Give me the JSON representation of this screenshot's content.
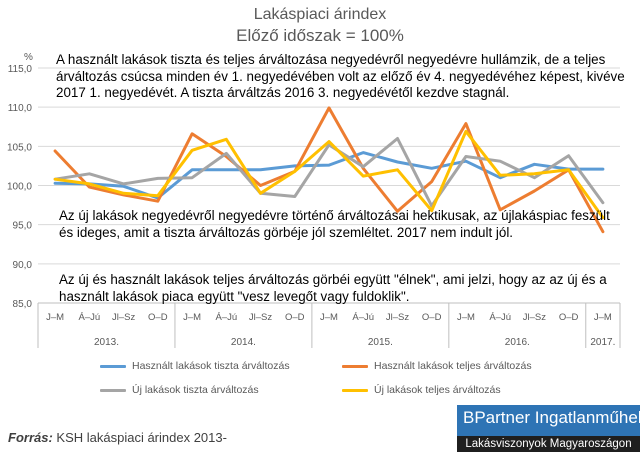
{
  "title": "Lakáspiaci árindex",
  "subtitle": "Előző időszak = 100%",
  "annotations": [
    "A használt lakások tiszta és teljes  árváltozása negyedévről negyedévre hullámzik, de a teljes árváltozás csúcsa minden év 1. negyedévében  volt az előző év 4. negyedévéhez képest, kivéve 2017 1. negyedévét. A tiszta árváltzás   2016 3. negyedévétől kezdve stagnál.",
    "Az új lakások negyedévről negyedévre történő árváltozásai hektikusak, az újlakáspiac feszült és ideges, amit a tiszta árváltozás görbéje jól szemléltet. 2017 nem indult jól.",
    "Az új és használt lakások teljes árváltozás görbéi együtt \"élnek\", ami jelzi, hogy az az új és a használt lakások piaca együtt \"vesz levegőt vagy fuldoklik\"."
  ],
  "source_label": "Forrás:",
  "source_text": " KSH lakáspiaci árindex 2013-",
  "brand_line1": "BPartner Ingatlanműhely",
  "brand_line2": "Lakásviszonyok Magyaroszágon",
  "colors": {
    "hasznalt_tiszta": "#5b9bd5",
    "hasznalt_teljes": "#ed7d31",
    "uj_tiszta": "#a5a5a5",
    "uj_teljes": "#ffc000",
    "grid": "#d9d9d9",
    "axis_text": "#595959"
  },
  "chart_data": {
    "type": "line",
    "title": "Lakáspiaci árindex",
    "subtitle": "Előző időszak = 100%",
    "yunit": "%",
    "ylim": [
      85,
      115
    ],
    "yticks": [
      "85,0",
      "90,0",
      "95,0",
      "100,0",
      "105,0",
      "110,0",
      "115,0"
    ],
    "ytick_values": [
      85,
      90,
      95,
      100,
      105,
      110,
      115
    ],
    "categories": [
      "J–M",
      "Á–Jú",
      "Jl–Sz",
      "O–D",
      "J–M",
      "Á–Jú",
      "Jl–Sz",
      "O–D",
      "J–M",
      "Á–Jú",
      "Jl–Sz",
      "O–D",
      "J–M",
      "Á–Jú",
      "Jl–Sz",
      "O–D",
      "J–M"
    ],
    "years": [
      {
        "label": "2013.",
        "start": 0,
        "count": 4
      },
      {
        "label": "2014.",
        "start": 4,
        "count": 4
      },
      {
        "label": "2015.",
        "start": 8,
        "count": 4
      },
      {
        "label": "2016.",
        "start": 12,
        "count": 4
      },
      {
        "label": "2017.",
        "start": 16,
        "count": 1
      }
    ],
    "grid": true,
    "legend_position": "bottom",
    "series": [
      {
        "name": "Használt lakások tiszta árváltozás",
        "color_key": "hasznalt_tiszta",
        "values": [
          100.3,
          100.2,
          99.9,
          98.4,
          102.0,
          102.0,
          102.0,
          102.5,
          102.6,
          104.2,
          103.0,
          102.2,
          103.1,
          101.0,
          102.7,
          102.1,
          102.1
        ]
      },
      {
        "name": "Használt lakások teljes árváltozás",
        "color_key": "hasznalt_teljes",
        "values": [
          104.4,
          99.8,
          98.8,
          98.0,
          106.6,
          103.7,
          100.0,
          101.8,
          109.9,
          102.2,
          96.7,
          100.5,
          107.9,
          96.9,
          99.3,
          102.0,
          94.1
        ]
      },
      {
        "name": "Új lakások tiszta árváltozás",
        "color_key": "uj_tiszta",
        "values": [
          100.8,
          101.5,
          100.2,
          100.9,
          101.0,
          104.1,
          99.0,
          98.6,
          105.2,
          102.4,
          106.0,
          97.4,
          103.7,
          103.1,
          101.0,
          103.8,
          97.8
        ]
      },
      {
        "name": "Új lakások teljes árváltozás",
        "color_key": "uj_teljes",
        "values": [
          100.8,
          100.2,
          99.0,
          98.7,
          104.5,
          105.9,
          99.0,
          101.8,
          105.6,
          101.2,
          102.0,
          96.8,
          106.9,
          101.3,
          101.5,
          102.0,
          95.9
        ]
      }
    ]
  }
}
